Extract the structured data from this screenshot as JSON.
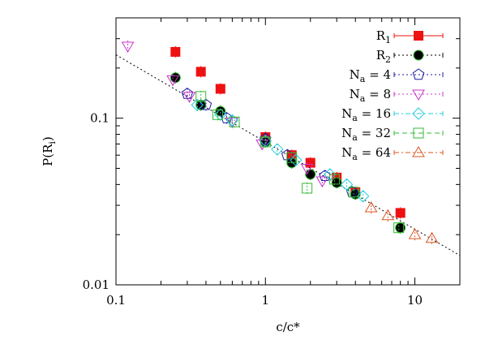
{
  "chart_data": {
    "type": "scatter",
    "xscale": "log",
    "yscale": "log",
    "xlim": [
      0.1,
      20
    ],
    "ylim": [
      0.01,
      0.4
    ],
    "xlabel": "c/c*",
    "ylabel_main": "P(R",
    "ylabel_sub": "i",
    "ylabel_end": ")",
    "x_ticks": [
      {
        "value": 0.1,
        "label": "0.1"
      },
      {
        "value": 1,
        "label": "1"
      },
      {
        "value": 10,
        "label": "10"
      }
    ],
    "y_ticks": [
      {
        "value": 0.01,
        "label": "0.01"
      },
      {
        "value": 0.1,
        "label": "0.1"
      }
    ],
    "grid": false,
    "legend_position": "top-right",
    "fit_line": {
      "color": "#000000",
      "points": [
        [
          0.1,
          0.24
        ],
        [
          20,
          0.015
        ]
      ]
    },
    "series": [
      {
        "name": "R",
        "sub": "1",
        "suffix": "",
        "color": "#ee1111",
        "marker": "square-filled",
        "line": "solid",
        "points": [
          [
            0.25,
            0.25
          ],
          [
            0.37,
            0.19
          ],
          [
            0.5,
            0.15
          ],
          [
            1.0,
            0.077
          ],
          [
            1.5,
            0.06
          ],
          [
            2.0,
            0.054
          ],
          [
            3.0,
            0.044
          ],
          [
            4.0,
            0.036
          ],
          [
            8.0,
            0.027
          ]
        ]
      },
      {
        "name": "R",
        "sub": "2",
        "suffix": "",
        "color": "#000000",
        "marker": "circle-filled",
        "line": "dotted",
        "points": [
          [
            0.25,
            0.175
          ],
          [
            0.37,
            0.12
          ],
          [
            0.5,
            0.11
          ],
          [
            1.0,
            0.072
          ],
          [
            1.5,
            0.054
          ],
          [
            2.0,
            0.046
          ],
          [
            3.0,
            0.041
          ],
          [
            4.0,
            0.035
          ],
          [
            8.0,
            0.022
          ]
        ]
      },
      {
        "name": "N",
        "sub": "a",
        "suffix": " = 4",
        "color": "#1a1aa6",
        "marker": "pentagon",
        "line": "dotted",
        "points": [
          [
            0.3,
            0.14
          ],
          [
            0.4,
            0.12
          ],
          [
            0.55,
            0.1
          ],
          [
            1.0,
            0.075
          ],
          [
            1.4,
            0.06
          ],
          [
            2.5,
            0.045
          ],
          [
            3.8,
            0.036
          ]
        ]
      },
      {
        "name": "N",
        "sub": "a",
        "suffix": " = 8",
        "color": "#cc33cc",
        "marker": "triangle-down",
        "line": "dotted",
        "points": [
          [
            0.12,
            0.27
          ],
          [
            0.24,
            0.17
          ],
          [
            0.31,
            0.135
          ],
          [
            0.6,
            0.095
          ],
          [
            0.95,
            0.07
          ],
          [
            1.9,
            0.05
          ],
          [
            2.4,
            0.042
          ]
        ]
      },
      {
        "name": "N",
        "sub": "a",
        "suffix": " = 16",
        "color": "#22ccdd",
        "marker": "diamond",
        "line": "dashdot",
        "points": [
          [
            0.35,
            0.12
          ],
          [
            0.5,
            0.105
          ],
          [
            0.6,
            0.097
          ],
          [
            1.0,
            0.073
          ],
          [
            1.2,
            0.065
          ],
          [
            1.6,
            0.056
          ],
          [
            2.7,
            0.046
          ],
          [
            3.5,
            0.04
          ],
          [
            4.5,
            0.034
          ]
        ]
      },
      {
        "name": "N",
        "sub": "a",
        "suffix": " = 32",
        "color": "#33bb33",
        "marker": "square-open",
        "line": "dashed",
        "points": [
          [
            0.37,
            0.135
          ],
          [
            0.48,
            0.105
          ],
          [
            0.62,
            0.095
          ],
          [
            1.0,
            0.072
          ],
          [
            1.5,
            0.058
          ],
          [
            1.9,
            0.038
          ],
          [
            2.9,
            0.043
          ],
          [
            3.9,
            0.036
          ],
          [
            7.8,
            0.022
          ]
        ]
      },
      {
        "name": "N",
        "sub": "a",
        "suffix": " = 64",
        "color": "#dd5522",
        "marker": "triangle-up",
        "line": "dashdot",
        "points": [
          [
            5.1,
            0.029
          ],
          [
            6.6,
            0.026
          ],
          [
            10.0,
            0.02
          ],
          [
            13.0,
            0.019
          ]
        ]
      }
    ]
  }
}
